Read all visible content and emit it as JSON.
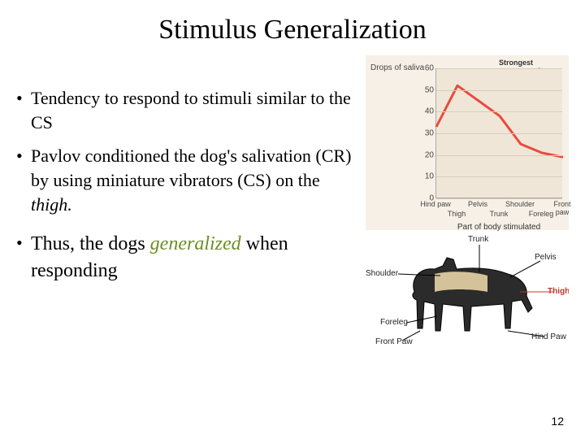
{
  "title": "Stimulus Generalization",
  "bullets": [
    {
      "text": "Tendency to respond to stimuli similar to the CS"
    },
    {
      "text": "Pavlov conditioned the dog's salivation (CR) by using miniature vibrators (CS) on the ",
      "em_suffix": "thigh."
    },
    {
      "text": "Thus, the dogs ",
      "green_em": "generalized",
      "suffix": " when responding"
    }
  ],
  "chart": {
    "type": "line",
    "ylabel": "Drops of saliva",
    "annotation": "Strongest responses from areas nearest the thigh",
    "ylim": [
      0,
      60
    ],
    "yticks": [
      0,
      10,
      20,
      30,
      40,
      50,
      60
    ],
    "categories_top": [
      "Hind paw",
      "Pelvis",
      "Shoulder",
      "Front paw"
    ],
    "categories_bot": [
      "Thigh",
      "Trunk",
      "Foreleg"
    ],
    "values": [
      33,
      52,
      45,
      38,
      25,
      21,
      19
    ],
    "xlabel": "Part of body stimulated",
    "line_color": "#e74c3c",
    "line_width": 3,
    "plot_bg": "#f0e6d8",
    "panel_bg": "#f7f0e6",
    "grid_color": "#d8ccb8"
  },
  "dog": {
    "labels": {
      "trunk": "Trunk",
      "pelvis": "Pelvis",
      "shoulder": "Shoulder",
      "thigh": "Thigh",
      "foreleg": "Foreleg",
      "hind_paw": "Hind Paw",
      "front_paw": "Front Paw"
    }
  },
  "page_number": "12"
}
